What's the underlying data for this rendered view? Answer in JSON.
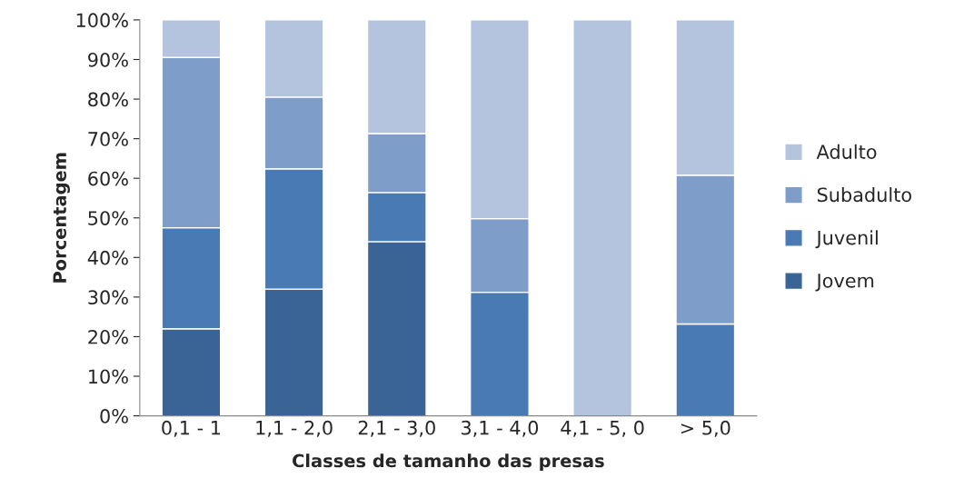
{
  "chart_data": {
    "type": "bar",
    "stacked": true,
    "xlabel": "Classes de tamanho das presas",
    "ylabel": "Porcentagem",
    "categories": [
      "0,1 - 1",
      "1,1 - 2,0",
      "2,1 - 3,0",
      "3,1 - 4,0",
      "4,1 - 5, 0",
      "> 5,0"
    ],
    "series": [
      {
        "name": "Jovem",
        "color": "#3a6496",
        "values": [
          22,
          32,
          44,
          null,
          null,
          null
        ]
      },
      {
        "name": "Juvenil",
        "color": "#4a7ab4",
        "values": [
          25.5,
          30.4,
          12.4,
          31.2,
          null,
          23.2
        ]
      },
      {
        "name": "Subadulto",
        "color": "#7f9dc9",
        "values": [
          43,
          18.1,
          14.9,
          18.6,
          null,
          37.6
        ]
      },
      {
        "name": "Adulto",
        "color": "#b5c4de",
        "values": [
          9.5,
          19.5,
          28.7,
          50.2,
          100,
          39.2
        ]
      }
    ],
    "ylim": [
      0,
      100
    ],
    "yticks": [
      {
        "value": 0,
        "label": "0%"
      },
      {
        "value": 10,
        "label": "10%"
      },
      {
        "value": 20,
        "label": "20%"
      },
      {
        "value": 30,
        "label": "30%"
      },
      {
        "value": 40,
        "label": "40%"
      },
      {
        "value": 50,
        "label": "50%"
      },
      {
        "value": 60,
        "label": "60%"
      },
      {
        "value": 70,
        "label": "70%"
      },
      {
        "value": 80,
        "label": "80%"
      },
      {
        "value": 90,
        "label": "90%"
      },
      {
        "value": 100,
        "label": "100%"
      }
    ],
    "grid": false,
    "legend": "right"
  }
}
